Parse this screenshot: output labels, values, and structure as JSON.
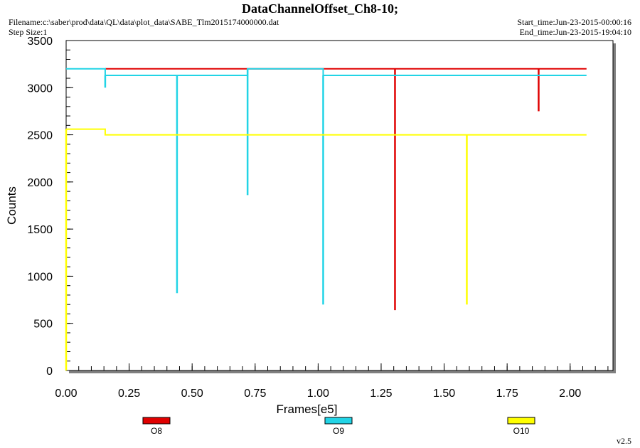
{
  "header": {
    "title": "DataChannelOffset_Ch8-10;",
    "filename": "Filename:c:\\saber\\prod\\data\\QL\\data\\plot_data\\SABE_Tlm2015174000000.dat",
    "step_size": "Step Size:1",
    "start_time": "Start_time:Jun-23-2015-00:00:16",
    "end_time": "End_time:Jun-23-2015-19:04:10"
  },
  "footer": {
    "version": "v2.5"
  },
  "colors": {
    "O8": "#e00000",
    "O9": "#22d4e6",
    "O10": "#ffff00",
    "axes": "#000000",
    "shadow": "#808080"
  },
  "chart_data": {
    "type": "line",
    "title": "DataChannelOffset_Ch8-10;",
    "xlabel": "Frames[e5]",
    "ylabel": "Counts",
    "xlim": [
      0,
      2.17
    ],
    "ylim": [
      0,
      3500
    ],
    "xticks": [
      "0.00",
      "0.25",
      "0.50",
      "0.75",
      "1.00",
      "1.25",
      "1.50",
      "1.75",
      "2.00"
    ],
    "yticks": [
      "0",
      "500",
      "1000",
      "1500",
      "2000",
      "2500",
      "3000",
      "3500"
    ],
    "grid": false,
    "legend": "bottom",
    "series": [
      {
        "name": "O8",
        "color": "#e00000",
        "baseline": [
          [
            0.155,
            3200
          ],
          [
            2.065,
            3200
          ]
        ],
        "dips": [
          [
            0.72,
            3200
          ],
          [
            1.305,
            640
          ],
          [
            1.875,
            2750
          ]
        ]
      },
      {
        "name": "O9",
        "color": "#22d4e6",
        "baseline": [
          [
            0.0,
            3200
          ],
          [
            0.155,
            3200
          ],
          [
            0.155,
            3130
          ],
          [
            0.72,
            3130
          ],
          [
            0.72,
            3200
          ],
          [
            1.02,
            3200
          ],
          [
            1.02,
            3130
          ],
          [
            2.065,
            3130
          ]
        ],
        "dips": [
          [
            0.155,
            3000
          ],
          [
            0.44,
            820
          ],
          [
            0.72,
            1860
          ],
          [
            1.02,
            700
          ]
        ]
      },
      {
        "name": "O10",
        "color": "#ffff00",
        "baseline": [
          [
            0.0,
            2560
          ],
          [
            0.155,
            2560
          ],
          [
            0.155,
            2500
          ],
          [
            2.065,
            2500
          ]
        ],
        "dips": [
          [
            0.0,
            0
          ],
          [
            1.59,
            700
          ]
        ]
      }
    ]
  }
}
